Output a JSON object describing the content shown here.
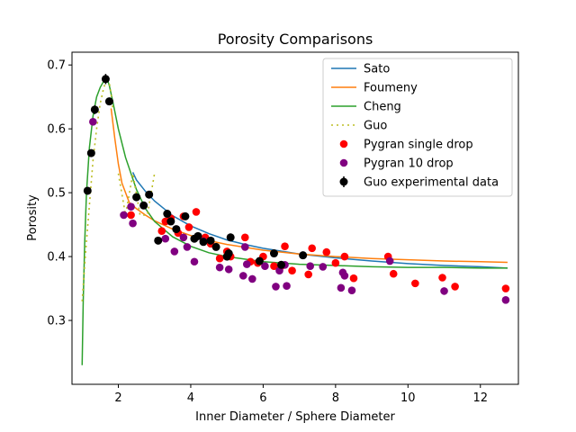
{
  "chart_data": {
    "type": "scatter",
    "title": "Porosity Comparisons",
    "xlabel": "Inner Diameter / Sphere Diameter",
    "ylabel": "Porosity",
    "xlim": [
      0.72,
      13.05
    ],
    "ylim": [
      0.2,
      0.72
    ],
    "xticks": [
      2,
      4,
      6,
      8,
      10,
      12
    ],
    "yticks": [
      0.3,
      0.4,
      0.5,
      0.6,
      0.7
    ],
    "grid": false,
    "legend_position": "top-right",
    "colors": {
      "sato": "#1f77b4",
      "foumeny": "#ff7f0e",
      "cheng": "#2ca02c",
      "guo": "#bcbd22",
      "pygran_single": "#ff0000",
      "pygran_10": "#800080",
      "guo_exp": "#000000"
    },
    "legend": [
      {
        "key": "sato",
        "label": "Sato",
        "kind": "line"
      },
      {
        "key": "foumeny",
        "label": "Foumeny",
        "kind": "line"
      },
      {
        "key": "cheng",
        "label": "Cheng",
        "kind": "line"
      },
      {
        "key": "guo",
        "label": "Guo",
        "kind": "dotted"
      },
      {
        "key": "pygran_single",
        "label": "Pygran single drop",
        "kind": "marker"
      },
      {
        "key": "pygran_10",
        "label": "Pygran 10 drop",
        "kind": "marker"
      },
      {
        "key": "guo_exp",
        "label": "Guo experimental data",
        "kind": "errorbar"
      }
    ],
    "series": [
      {
        "key": "sato",
        "name": "Sato",
        "style": "line",
        "x": [
          2.4,
          2.5,
          2.75,
          3.0,
          3.5,
          4.0,
          4.5,
          5.0,
          5.5,
          6.0,
          7.0,
          8.0,
          9.0,
          10.0,
          11.0,
          12.0,
          12.75
        ],
        "y": [
          0.532,
          0.52,
          0.502,
          0.487,
          0.464,
          0.448,
          0.436,
          0.426,
          0.419,
          0.413,
          0.404,
          0.398,
          0.393,
          0.389,
          0.386,
          0.384,
          0.382
        ]
      },
      {
        "key": "foumeny",
        "name": "Foumeny",
        "style": "line",
        "x": [
          1.8,
          1.9,
          2.0,
          2.1,
          2.3,
          2.5,
          2.75,
          3.0,
          3.5,
          4.0,
          4.5,
          5.0,
          6.0,
          7.0,
          8.0,
          9.0,
          10.0,
          11.0,
          12.0,
          12.75
        ],
        "y": [
          0.632,
          0.586,
          0.545,
          0.515,
          0.485,
          0.475,
          0.465,
          0.456,
          0.443,
          0.433,
          0.425,
          0.419,
          0.41,
          0.404,
          0.4,
          0.397,
          0.395,
          0.393,
          0.392,
          0.391
        ]
      },
      {
        "key": "cheng",
        "name": "Cheng",
        "style": "line",
        "x": [
          1.0,
          1.03,
          1.07,
          1.12,
          1.2,
          1.3,
          1.4,
          1.5,
          1.6,
          1.68,
          1.75,
          1.85,
          2.0,
          2.2,
          2.5,
          2.75,
          3.0,
          3.5,
          4.0,
          4.5,
          5.0,
          6.0,
          7.0,
          8.0,
          9.0,
          10.0,
          11.0,
          12.0,
          12.75
        ],
        "y": [
          0.23,
          0.33,
          0.42,
          0.5,
          0.57,
          0.62,
          0.65,
          0.665,
          0.675,
          0.68,
          0.668,
          0.642,
          0.6,
          0.555,
          0.505,
          0.475,
          0.455,
          0.431,
          0.416,
          0.406,
          0.4,
          0.392,
          0.388,
          0.386,
          0.384,
          0.383,
          0.383,
          0.382,
          0.382
        ]
      },
      {
        "key": "guo",
        "name": "Guo",
        "style": "dotted",
        "segments": [
          {
            "x": [
              1.0,
              1.1,
              1.2,
              1.3,
              1.4,
              1.5,
              1.6,
              1.7,
              1.75,
              1.8,
              1.85
            ],
            "y": [
              0.33,
              0.41,
              0.48,
              0.55,
              0.6,
              0.64,
              0.665,
              0.68,
              0.672,
              0.655,
              0.63
            ]
          },
          {
            "x": [
              2.0,
              2.2,
              2.4,
              2.6,
              2.8,
              3.0
            ],
            "y": [
              0.53,
              0.465,
              0.53,
              0.465,
              0.465,
              0.53
            ]
          }
        ]
      },
      {
        "key": "pygran_single",
        "name": "Pygran single drop",
        "style": "marker",
        "x": [
          2.35,
          3.2,
          3.3,
          3.45,
          3.65,
          3.8,
          3.95,
          4.15,
          4.4,
          4.55,
          4.8,
          5.0,
          5.1,
          5.5,
          5.65,
          5.85,
          6.0,
          6.3,
          6.5,
          6.6,
          6.8,
          7.25,
          7.35,
          7.75,
          8.0,
          8.25,
          8.5,
          9.45,
          9.6,
          10.2,
          10.95,
          11.3,
          12.7
        ],
        "y": [
          0.465,
          0.44,
          0.455,
          0.46,
          0.437,
          0.463,
          0.446,
          0.47,
          0.43,
          0.42,
          0.397,
          0.408,
          0.4,
          0.43,
          0.392,
          0.39,
          0.4,
          0.385,
          0.385,
          0.416,
          0.378,
          0.372,
          0.413,
          0.407,
          0.39,
          0.4,
          0.366,
          0.4,
          0.373,
          0.358,
          0.367,
          0.353,
          0.35
        ]
      },
      {
        "key": "pygran_10",
        "name": "Pygran 10 drop",
        "style": "marker",
        "x": [
          1.3,
          2.15,
          2.35,
          2.4,
          3.3,
          3.55,
          3.8,
          3.9,
          4.1,
          4.35,
          4.8,
          5.05,
          5.45,
          5.5,
          5.55,
          5.7,
          6.05,
          6.35,
          6.45,
          6.6,
          6.65,
          7.3,
          7.65,
          8.15,
          8.2,
          8.25,
          8.45,
          9.5,
          11.0,
          12.7
        ],
        "y": [
          0.611,
          0.465,
          0.478,
          0.452,
          0.428,
          0.408,
          0.43,
          0.415,
          0.392,
          0.424,
          0.383,
          0.38,
          0.37,
          0.415,
          0.388,
          0.365,
          0.385,
          0.353,
          0.378,
          0.387,
          0.354,
          0.385,
          0.384,
          0.351,
          0.375,
          0.37,
          0.347,
          0.393,
          0.346,
          0.332
        ]
      },
      {
        "key": "guo_exp",
        "name": "Guo experimental data",
        "style": "errorbar",
        "x": [
          1.15,
          1.25,
          1.35,
          1.65,
          1.75,
          2.5,
          2.7,
          2.85,
          3.1,
          3.35,
          3.45,
          3.6,
          3.85,
          4.1,
          4.2,
          4.35,
          4.55,
          4.7,
          5.0,
          5.05,
          5.1,
          5.9,
          6.3,
          6.5,
          7.1
        ],
        "y": [
          0.503,
          0.562,
          0.63,
          0.678,
          0.643,
          0.493,
          0.48,
          0.497,
          0.425,
          0.467,
          0.455,
          0.443,
          0.463,
          0.428,
          0.432,
          0.423,
          0.425,
          0.415,
          0.4,
          0.405,
          0.43,
          0.393,
          0.405,
          0.387,
          0.402
        ],
        "yerr": [
          0.003,
          0.005,
          0.007,
          0.008,
          0.005,
          0.004,
          0.003,
          0.003,
          0.003,
          0.003,
          0.003,
          0.003,
          0.003,
          0.003,
          0.003,
          0.003,
          0.003,
          0.003,
          0.003,
          0.003,
          0.003,
          0.003,
          0.003,
          0.003,
          0.003
        ]
      }
    ]
  }
}
